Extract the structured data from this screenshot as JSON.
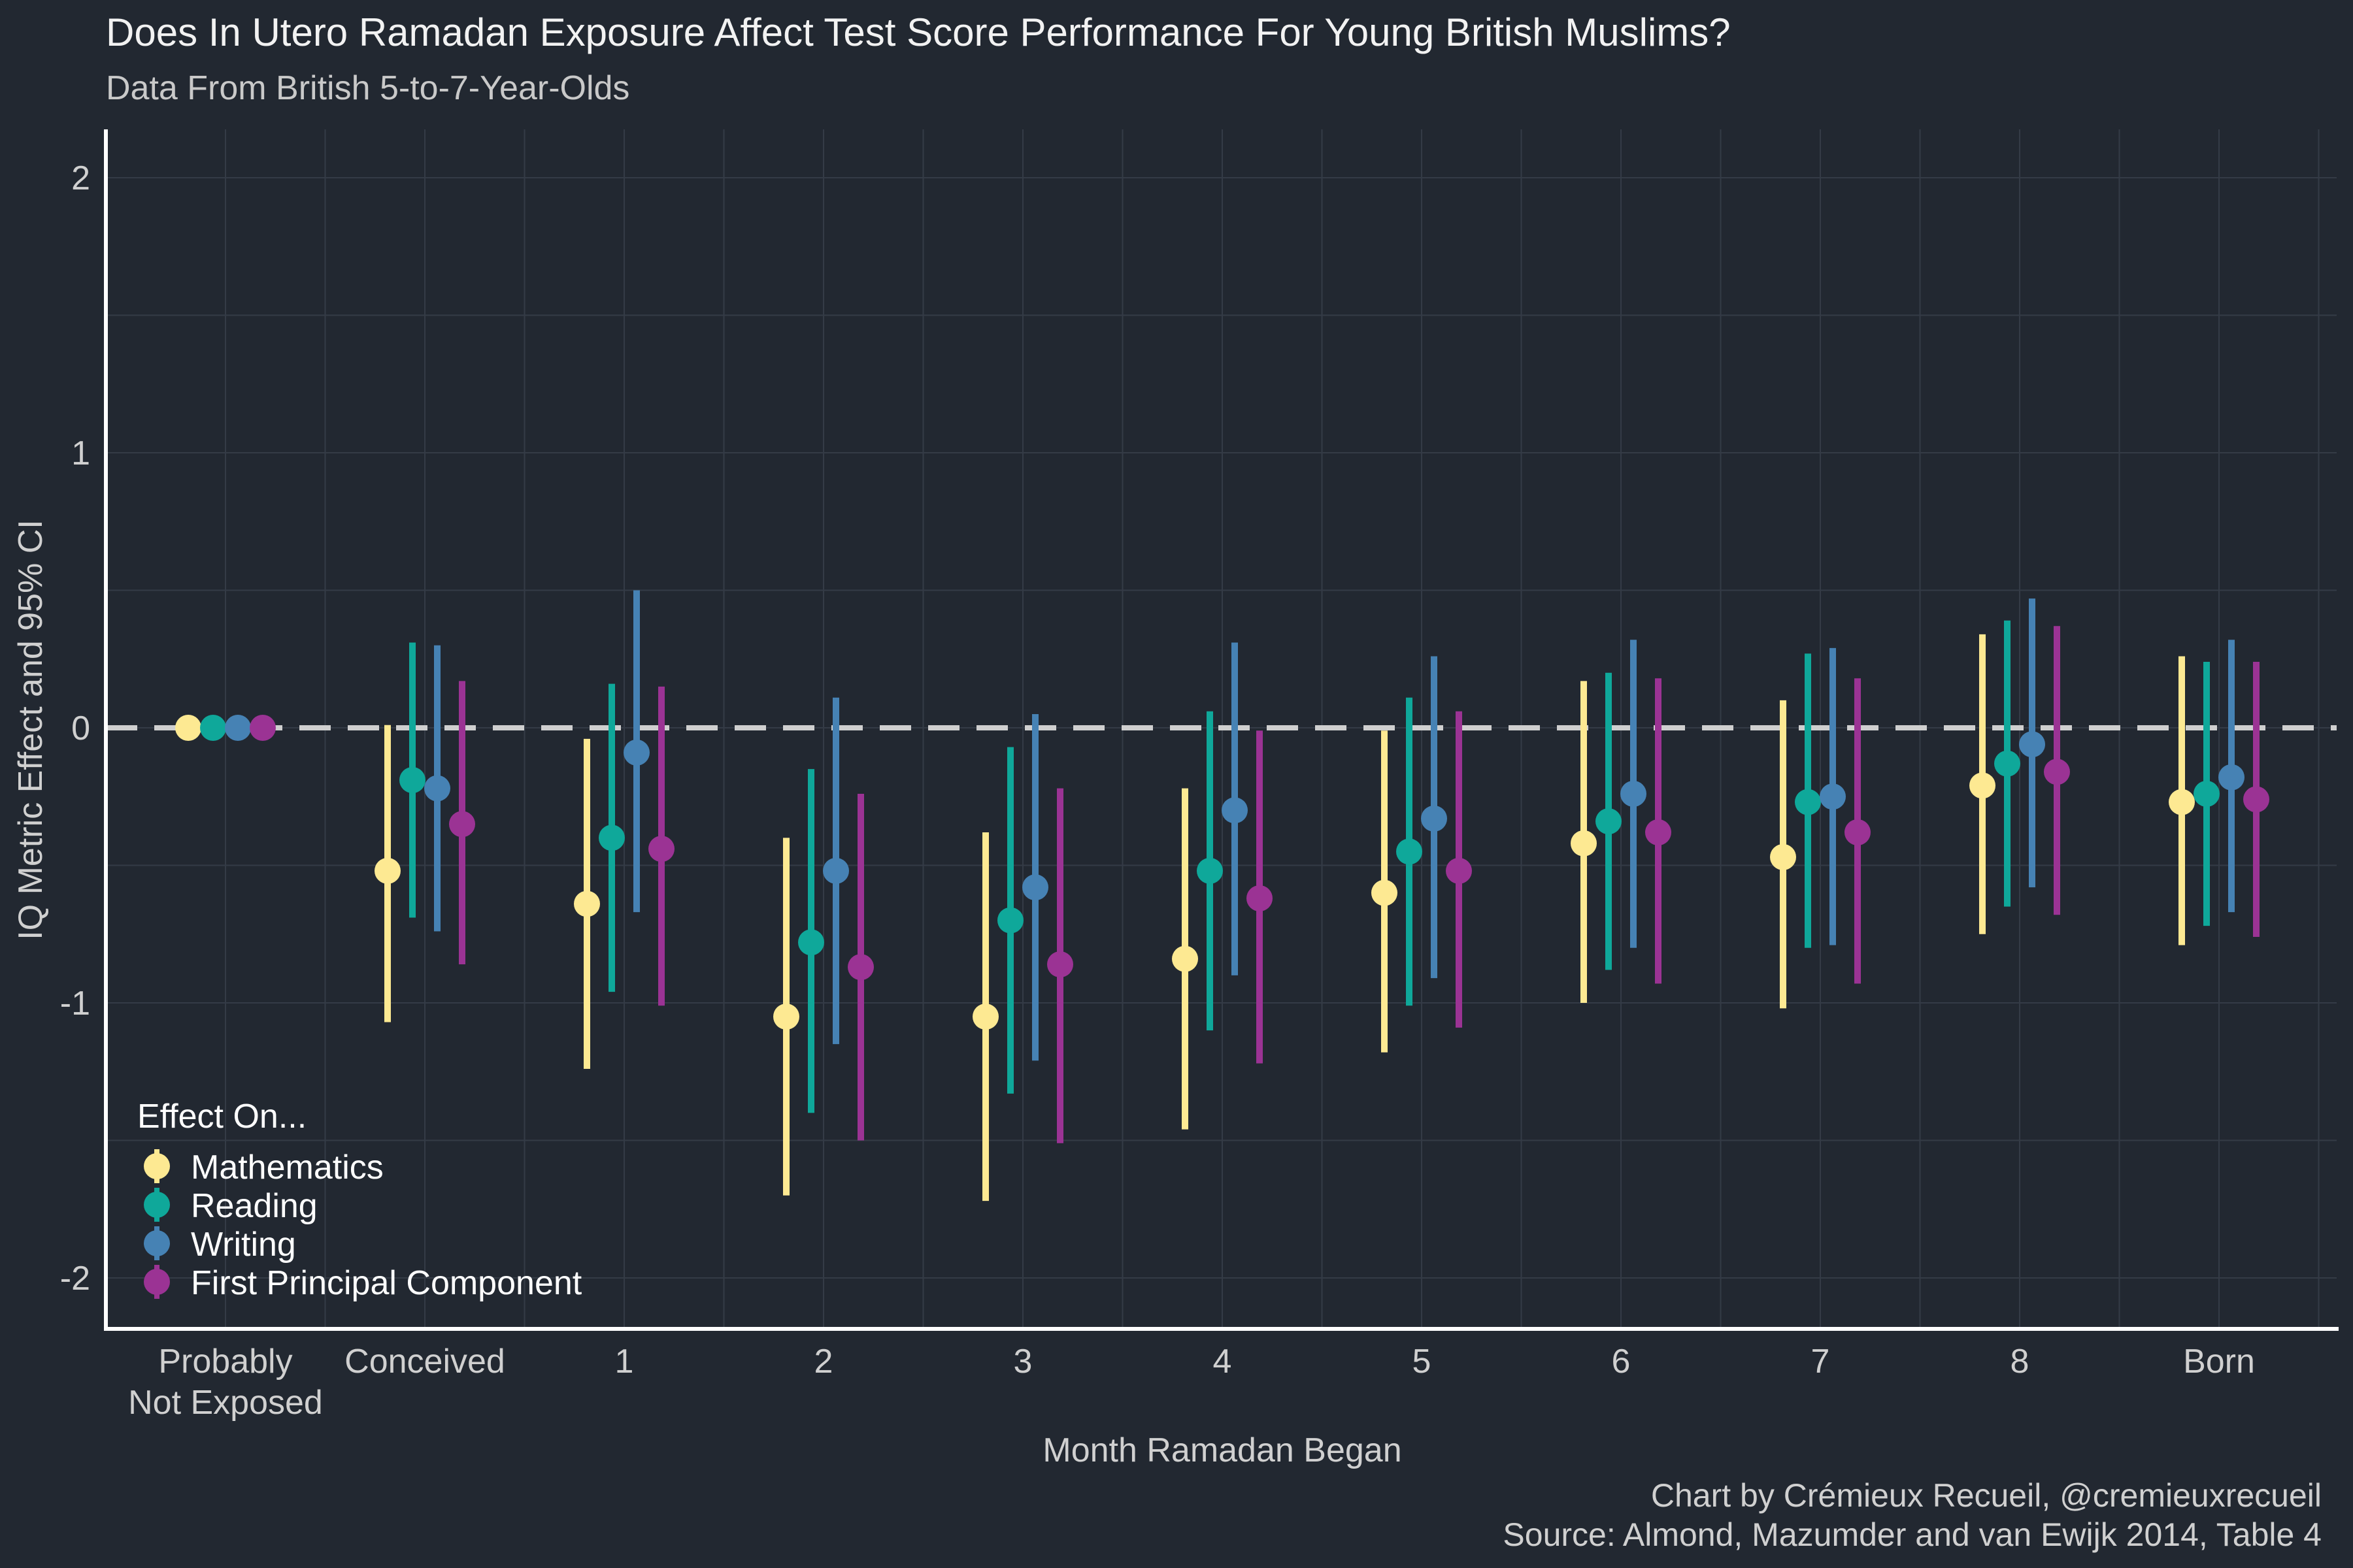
{
  "chart_data": {
    "type": "scatter",
    "title": "Does In Utero Ramadan Exposure Affect Test Score Performance For Young British Muslims?",
    "subtitle": "Data From British 5-to-7-Year-Olds",
    "xlabel": "Month Ramadan Began",
    "ylabel": "IQ Metric Effect and 95% CI",
    "ylim": [
      -2.2,
      2.2
    ],
    "yticks": [
      2,
      1,
      0,
      -1,
      -2
    ],
    "grid": true,
    "reference_line": 0,
    "legend": {
      "title": "Effect On...",
      "placement": "bottom-left"
    },
    "categories": [
      [
        "Probably",
        "Not Exposed"
      ],
      [
        "Conceived"
      ],
      [
        "1"
      ],
      [
        "2"
      ],
      [
        "3"
      ],
      [
        "4"
      ],
      [
        "5"
      ],
      [
        "6"
      ],
      [
        "7"
      ],
      [
        "8"
      ],
      [
        "Born"
      ]
    ],
    "series": [
      {
        "name": "Mathematics",
        "color": "#fde992",
        "estimate": [
          0,
          -0.52,
          -0.64,
          -1.05,
          -1.05,
          -0.84,
          -0.6,
          -0.42,
          -0.47,
          -0.21,
          -0.27
        ],
        "lower": [
          0,
          -1.07,
          -1.24,
          -1.7,
          -1.72,
          -1.46,
          -1.18,
          -1.0,
          -1.02,
          -0.75,
          -0.79
        ],
        "upper": [
          0,
          0.01,
          -0.04,
          -0.4,
          -0.38,
          -0.22,
          -0.01,
          0.17,
          0.1,
          0.34,
          0.26
        ]
      },
      {
        "name": "Reading",
        "color": "#0fa89a",
        "estimate": [
          0,
          -0.19,
          -0.4,
          -0.78,
          -0.7,
          -0.52,
          -0.45,
          -0.34,
          -0.27,
          -0.13,
          -0.24
        ],
        "lower": [
          0,
          -0.69,
          -0.96,
          -1.4,
          -1.33,
          -1.1,
          -1.01,
          -0.88,
          -0.8,
          -0.65,
          -0.72
        ],
        "upper": [
          0,
          0.31,
          0.16,
          -0.15,
          -0.07,
          0.06,
          0.11,
          0.2,
          0.27,
          0.39,
          0.24
        ]
      },
      {
        "name": "Writing",
        "color": "#4682b4",
        "estimate": [
          0,
          -0.22,
          -0.09,
          -0.52,
          -0.58,
          -0.3,
          -0.33,
          -0.24,
          -0.25,
          -0.06,
          -0.18
        ],
        "lower": [
          0,
          -0.74,
          -0.67,
          -1.15,
          -1.21,
          -0.9,
          -0.91,
          -0.8,
          -0.79,
          -0.58,
          -0.67
        ],
        "upper": [
          0,
          0.3,
          0.5,
          0.11,
          0.05,
          0.31,
          0.26,
          0.32,
          0.29,
          0.47,
          0.32
        ]
      },
      {
        "name": "First Principal Component",
        "color": "#9b3394",
        "estimate": [
          0,
          -0.35,
          -0.44,
          -0.87,
          -0.86,
          -0.62,
          -0.52,
          -0.38,
          -0.38,
          -0.16,
          -0.26
        ],
        "lower": [
          0,
          -0.86,
          -1.01,
          -1.5,
          -1.51,
          -1.22,
          -1.09,
          -0.93,
          -0.93,
          -0.68,
          -0.76
        ],
        "upper": [
          0,
          0.17,
          0.15,
          -0.24,
          -0.22,
          -0.01,
          0.06,
          0.18,
          0.18,
          0.37,
          0.24
        ]
      }
    ]
  },
  "caption": {
    "credit": "Chart by Crémieux Recueil, @cremieuxrecueil",
    "source": "Source: Almond, Mazumder and van Ewijk 2014, Table 4"
  }
}
